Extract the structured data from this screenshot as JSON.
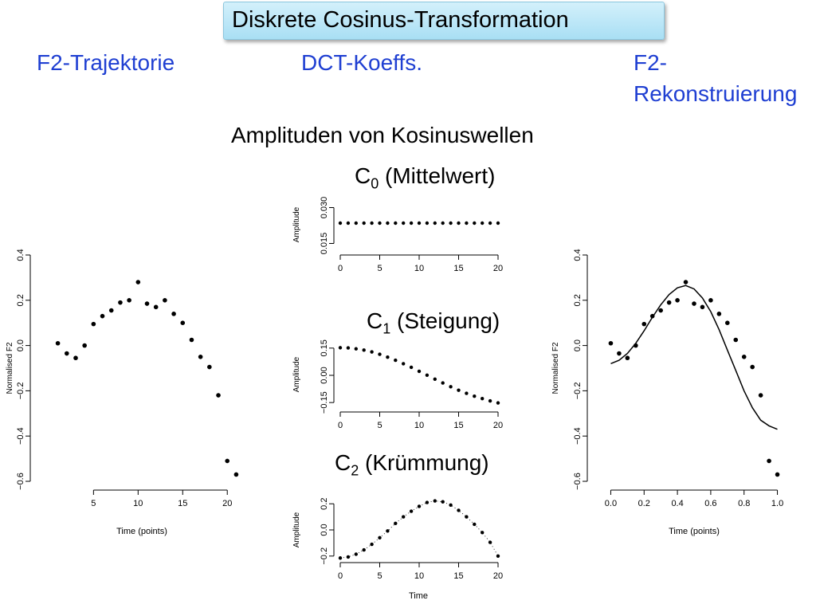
{
  "slide": {
    "title": "Diskrete  Cosinus-Transformation",
    "col1_heading": "F2-Trajektorie",
    "col2_heading": "DCT-Koeffs.",
    "col3_heading_line1": "F2-",
    "col3_heading_line2": "Rekonstruierung",
    "subtitle": "Amplituden von Kosinuswellen",
    "c0": {
      "sym": "C",
      "idx": "0",
      "rest": " (Mittelwert)"
    },
    "c1": {
      "sym": "C",
      "idx": "1",
      "rest": " (Steigung)"
    },
    "c2": {
      "sym": "C",
      "idx": "2",
      "rest": " (Krümmung)"
    }
  },
  "colors": {
    "title_bg": "#b6e4f6",
    "heading": "#1f3fd2",
    "points": "#000000"
  },
  "chart_data": [
    {
      "id": "f2",
      "type": "scatter",
      "xlabel": "Time (points)",
      "ylabel": "Normalised F2",
      "xlim": [
        0.5,
        21.5
      ],
      "ylim": [
        -0.6,
        0.4
      ],
      "xticks": [
        5,
        10,
        15,
        20
      ],
      "xtick_labels": [
        "5",
        "10",
        "15",
        "20"
      ],
      "yticks": [
        -0.6,
        -0.4,
        -0.2,
        0.0,
        0.2,
        0.4
      ],
      "ytick_labels": [
        "−0.6",
        "−0.4",
        "−0.2",
        "0.0",
        "0.2",
        "0.4"
      ],
      "x": [
        1,
        2,
        3,
        4,
        5,
        6,
        7,
        8,
        9,
        10,
        11,
        12,
        13,
        14,
        15,
        16,
        17,
        18,
        19,
        20,
        21
      ],
      "y": [
        0.01,
        -0.035,
        -0.055,
        0.0,
        0.095,
        0.13,
        0.155,
        0.19,
        0.2,
        0.28,
        0.185,
        0.17,
        0.2,
        0.14,
        0.1,
        0.025,
        -0.05,
        -0.095,
        -0.22,
        -0.51,
        -0.57
      ]
    },
    {
      "id": "c0",
      "type": "scatter",
      "xlabel": "",
      "ylabel": "Amplitude",
      "xlim": [
        0,
        20
      ],
      "ylim": [
        0.0125,
        0.0325
      ],
      "xticks": [
        0,
        5,
        10,
        15,
        20
      ],
      "xtick_labels": [
        "0",
        "5",
        "10",
        "15",
        "20"
      ],
      "yticks": [
        0.015,
        0.03
      ],
      "ytick_labels": [
        "0.015",
        "0.030"
      ],
      "x": [
        0,
        1,
        2,
        3,
        4,
        5,
        6,
        7,
        8,
        9,
        10,
        11,
        12,
        13,
        14,
        15,
        16,
        17,
        18,
        19,
        20
      ],
      "y": [
        0.0235,
        0.0235,
        0.0235,
        0.0235,
        0.0235,
        0.0235,
        0.0235,
        0.0235,
        0.0235,
        0.0235,
        0.0235,
        0.0235,
        0.0235,
        0.0235,
        0.0235,
        0.0235,
        0.0235,
        0.0235,
        0.0235,
        0.0235,
        0.0235
      ]
    },
    {
      "id": "c1",
      "type": "scatter",
      "xlabel": "",
      "ylabel": "Amplitude",
      "xlim": [
        0,
        20
      ],
      "ylim": [
        -0.18,
        0.18
      ],
      "xticks": [
        0,
        5,
        10,
        15,
        20
      ],
      "xtick_labels": [
        "0",
        "5",
        "10",
        "15",
        "20"
      ],
      "yticks": [
        -0.15,
        0.0,
        0.15
      ],
      "ytick_labels": [
        "−0.15",
        "0.00",
        "0.15"
      ],
      "x": [
        0,
        1,
        2,
        3,
        4,
        5,
        6,
        7,
        8,
        9,
        10,
        11,
        12,
        13,
        14,
        15,
        16,
        17,
        18,
        19,
        20
      ],
      "y": [
        0.152,
        0.151,
        0.146,
        0.139,
        0.129,
        0.116,
        0.1,
        0.083,
        0.064,
        0.044,
        0.022,
        0.001,
        -0.021,
        -0.042,
        -0.063,
        -0.082,
        -0.099,
        -0.115,
        -0.128,
        -0.141,
        -0.152
      ]
    },
    {
      "id": "c2",
      "type": "scatter",
      "xlabel": "Time",
      "ylabel": "Amplitude",
      "xlim": [
        0,
        20
      ],
      "ylim": [
        -0.25,
        0.25
      ],
      "xticks": [
        0,
        5,
        10,
        15,
        20
      ],
      "xtick_labels": [
        "0",
        "5",
        "10",
        "15",
        "20"
      ],
      "yticks": [
        -0.2,
        0.0,
        0.2
      ],
      "ytick_labels": [
        "−0.2",
        "0.0",
        "0.2"
      ],
      "x": [
        0,
        1,
        2,
        3,
        4,
        5,
        6,
        7,
        8,
        9,
        10,
        11,
        12,
        13,
        14,
        15,
        16,
        17,
        18,
        19,
        20
      ],
      "y": [
        -0.215,
        -0.207,
        -0.186,
        -0.153,
        -0.11,
        -0.06,
        -0.008,
        0.05,
        0.1,
        0.143,
        0.18,
        0.21,
        0.222,
        0.215,
        0.19,
        0.15,
        0.1,
        0.043,
        -0.02,
        -0.095,
        -0.2
      ]
    },
    {
      "id": "recon",
      "type": "line",
      "xlabel": "Time (points)",
      "ylabel": "Normalised F2",
      "xlim": [
        -0.05,
        1.05
      ],
      "ylim": [
        -0.6,
        0.4
      ],
      "xticks": [
        0.0,
        0.2,
        0.4,
        0.6,
        0.8,
        1.0
      ],
      "xtick_labels": [
        "0.0",
        "0.2",
        "0.4",
        "0.6",
        "0.8",
        "1.0"
      ],
      "yticks": [
        -0.6,
        -0.4,
        -0.2,
        0.0,
        0.2,
        0.4
      ],
      "ytick_labels": [
        "−0.6",
        "−0.4",
        "−0.2",
        "0.0",
        "0.2",
        "0.4"
      ],
      "points_x": [
        0.0,
        0.05,
        0.1,
        0.15,
        0.2,
        0.25,
        0.3,
        0.35,
        0.4,
        0.45,
        0.5,
        0.55,
        0.6,
        0.65,
        0.7,
        0.75,
        0.8,
        0.85,
        0.9,
        0.95,
        1.0
      ],
      "points_y": [
        0.01,
        -0.035,
        -0.055,
        0.0,
        0.095,
        0.13,
        0.155,
        0.19,
        0.2,
        0.28,
        0.185,
        0.17,
        0.2,
        0.14,
        0.1,
        0.025,
        -0.05,
        -0.095,
        -0.22,
        -0.51,
        -0.57
      ],
      "curve_x": [
        0.0,
        0.05,
        0.1,
        0.15,
        0.2,
        0.25,
        0.3,
        0.35,
        0.4,
        0.45,
        0.5,
        0.55,
        0.6,
        0.65,
        0.7,
        0.75,
        0.8,
        0.85,
        0.9,
        0.95,
        1.0
      ],
      "curve_y": [
        -0.08,
        -0.065,
        -0.035,
        0.01,
        0.065,
        0.125,
        0.18,
        0.225,
        0.255,
        0.265,
        0.25,
        0.21,
        0.15,
        0.07,
        -0.02,
        -0.11,
        -0.2,
        -0.275,
        -0.33,
        -0.355,
        -0.37
      ]
    }
  ]
}
